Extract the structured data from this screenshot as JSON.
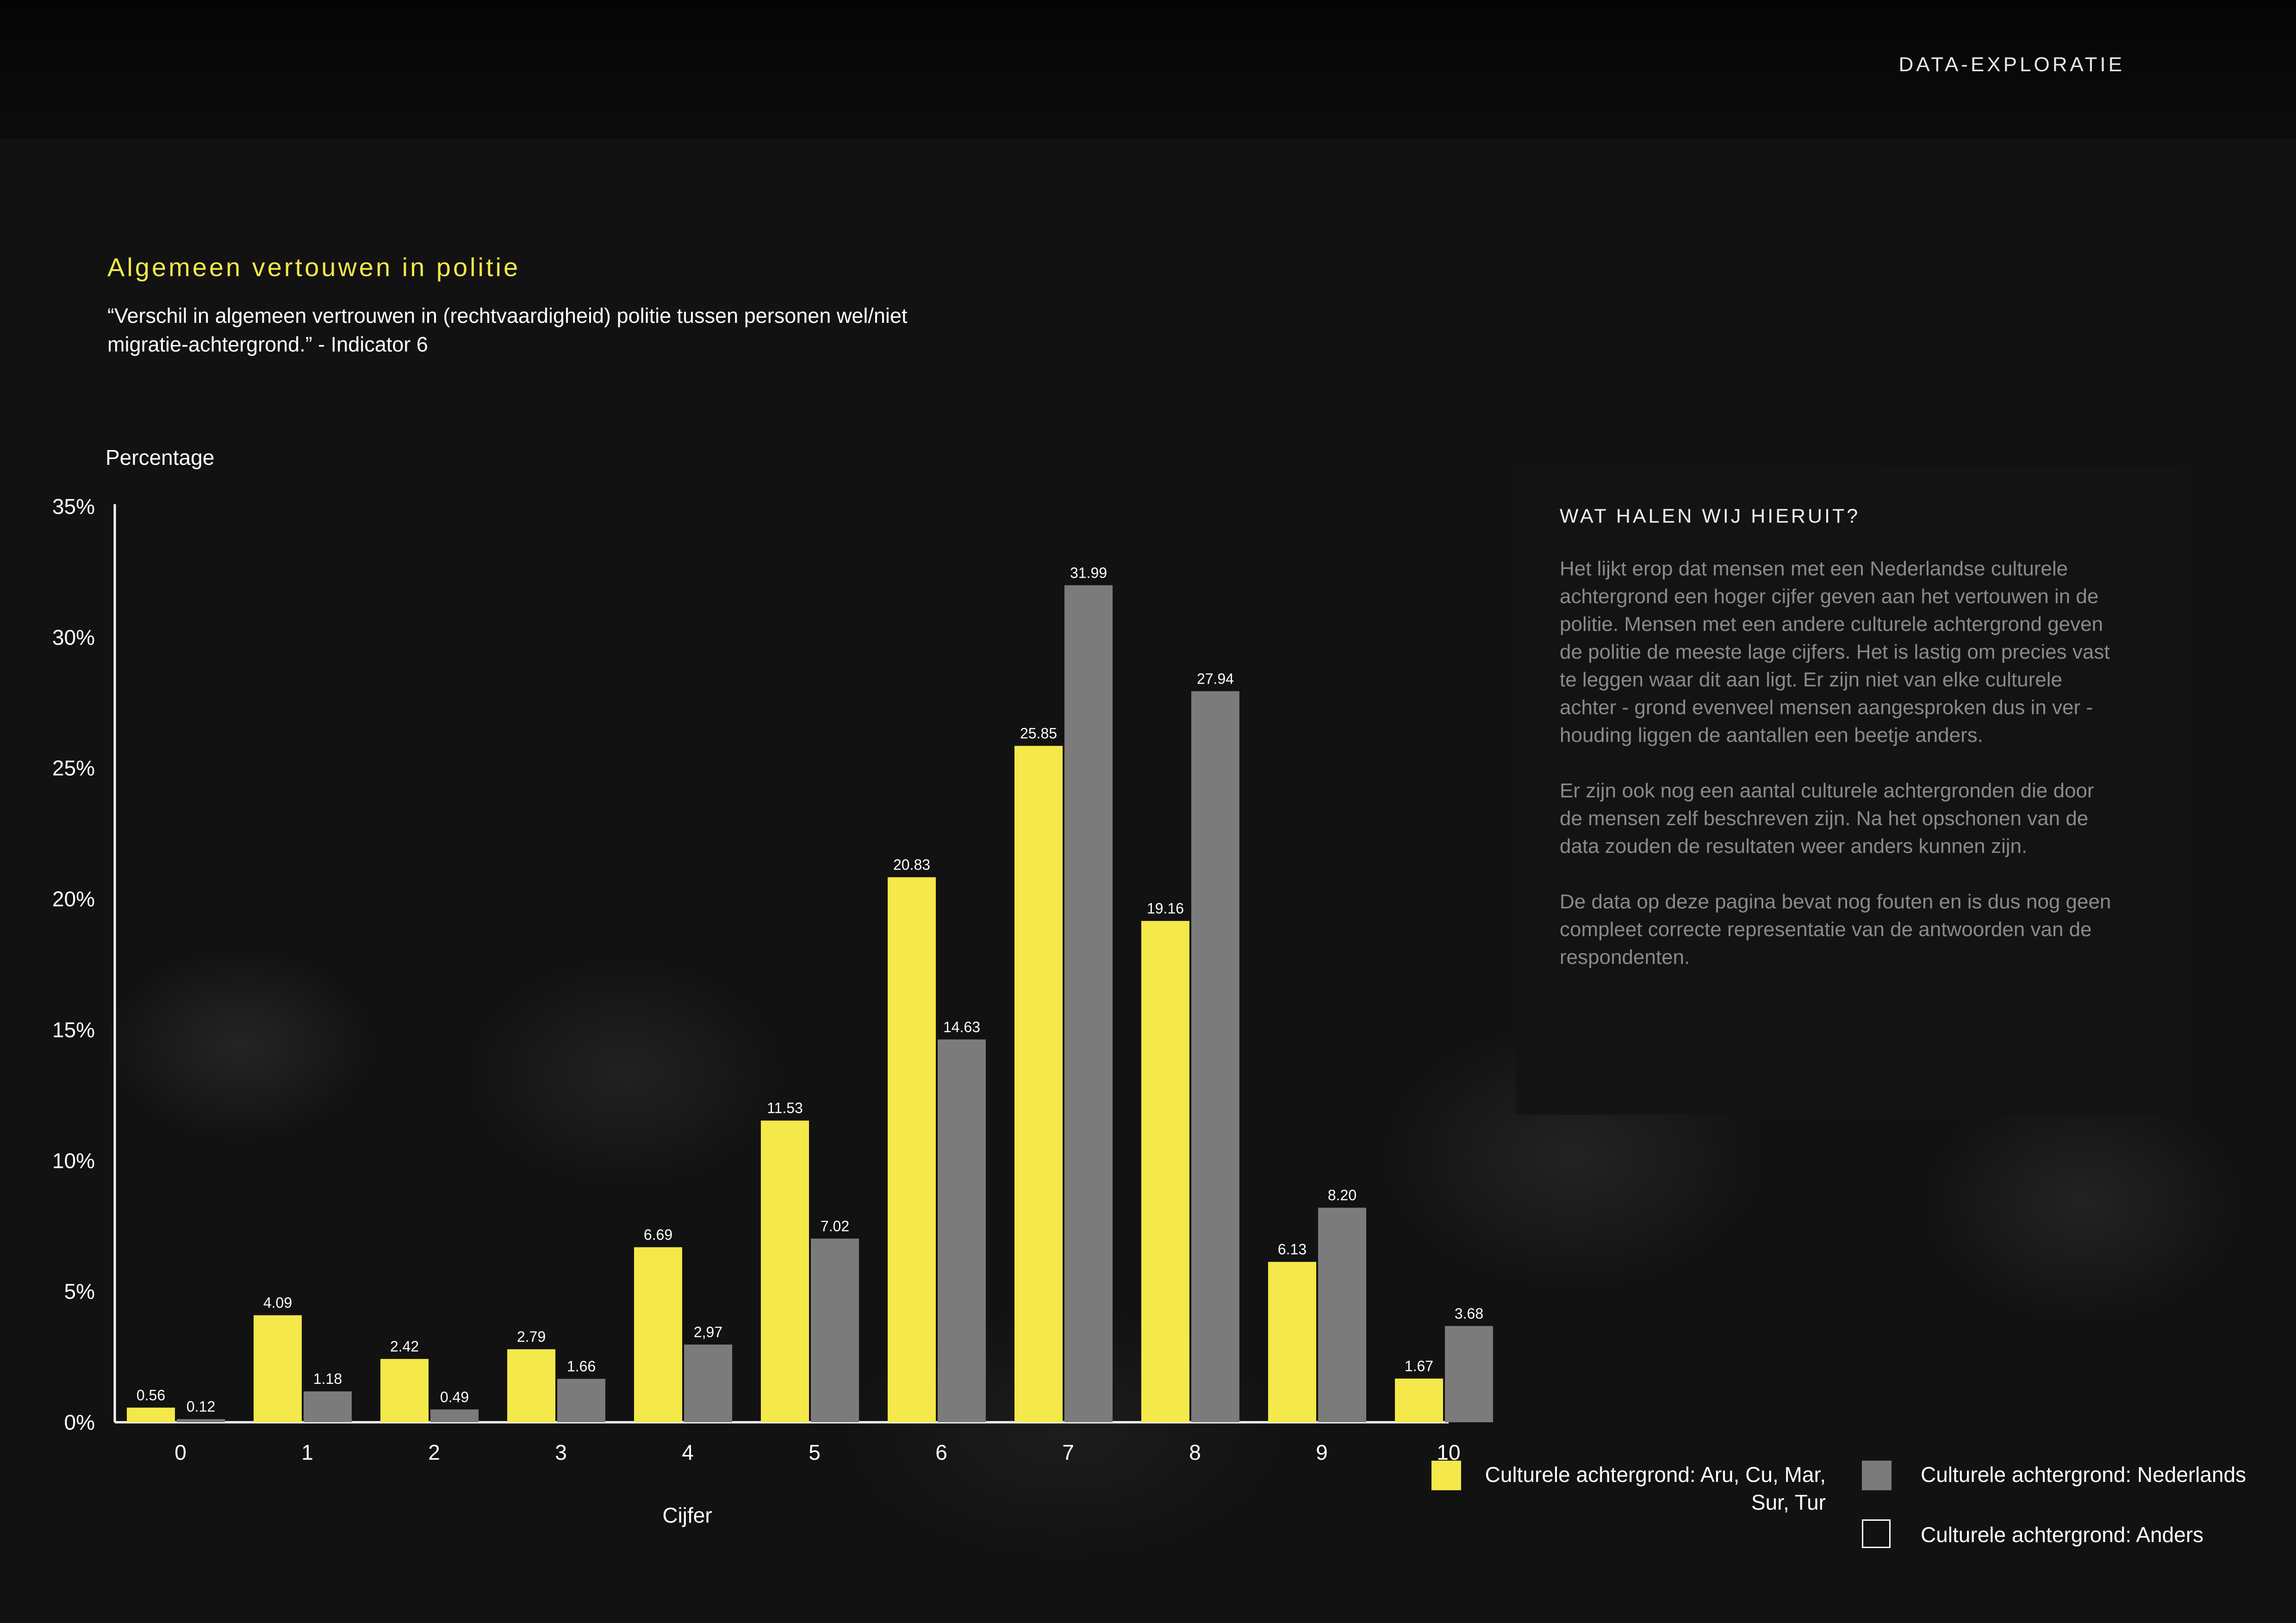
{
  "header": {
    "section_label": "DATA-EXPLORATIE"
  },
  "title": "Algemeen vertouwen in politie",
  "subtitle": "“Verschil in algemeen vertrouwen in (rechtvaardigheid) politie tussen personen wel/niet migratie-achtergrond.” - Indicator 6",
  "info": {
    "heading": "WAT HALEN WIJ HIERUIT?",
    "paragraphs": [
      "Het lijkt erop dat mensen met een Nederlandse culturele achtergrond een hoger cijfer geven aan het vertouwen in de politie. Mensen met een andere culturele achtergrond geven de politie de meeste lage cijfers. Het is lastig om precies vast te leggen waar dit aan ligt. Er zijn niet van elke culturele achter - grond evenveel mensen aangesproken dus in ver - houding liggen de aantallen een beetje anders.",
      "Er zijn ook nog een aantal culturele achtergronden die door de mensen zelf beschreven zijn. Na het opschonen van de data zouden de resultaten weer anders kunnen zijn.",
      "De data op deze pagina bevat nog fouten en is dus nog geen compleet correcte representatie van de antwoorden van de respondenten."
    ]
  },
  "legend": [
    {
      "label": "Culturele achtergrond: Aru, Cu, Mar, Sur, Tur",
      "color": "#f5e84a"
    },
    {
      "label": "Culturele achtergrond: Nederlands",
      "color": "#7b7b7b"
    },
    {
      "label": "Culturele achtergrond: Anders",
      "color": "none"
    }
  ],
  "chart_data": {
    "type": "bar",
    "ylabel": "Percentage",
    "xlabel": "Cijfer",
    "categories": [
      "0",
      "1",
      "2",
      "3",
      "4",
      "5",
      "6",
      "7",
      "8",
      "9",
      "10"
    ],
    "yticks": [
      "0%",
      "5%",
      "10%",
      "15%",
      "20%",
      "25%",
      "30%",
      "35%"
    ],
    "ylim": [
      0,
      35
    ],
    "grid": false,
    "legend_position": "bottom-right",
    "series": [
      {
        "name": "Culturele achtergrond: Aru, Cu, Mar, Sur, Tur",
        "color": "#f5e84a",
        "values": [
          0.56,
          4.09,
          2.42,
          2.79,
          6.69,
          11.53,
          20.83,
          25.85,
          19.16,
          6.13,
          1.67
        ],
        "labels": [
          "0.56",
          "4.09",
          "2.42",
          "2.79",
          "6.69",
          "11.53",
          "20.83",
          "25.85",
          "19.16",
          "6.13",
          "1.67"
        ]
      },
      {
        "name": "Culturele achtergrond: Nederlands",
        "color": "#7b7b7b",
        "values": [
          0.12,
          1.18,
          0.49,
          1.66,
          2.97,
          7.02,
          14.63,
          31.99,
          27.94,
          8.2,
          3.68
        ],
        "labels": [
          "0.12",
          "1.18",
          "0.49",
          "1.66",
          "2,97",
          "7.02",
          "14.63",
          "31.99",
          "27.94",
          "8.20",
          "3.68"
        ]
      }
    ]
  }
}
